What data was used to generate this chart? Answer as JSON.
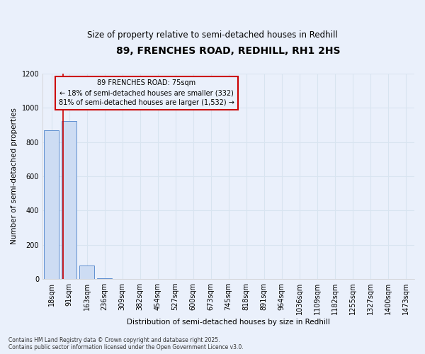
{
  "title": "89, FRENCHES ROAD, REDHILL, RH1 2HS",
  "subtitle": "Size of property relative to semi-detached houses in Redhill",
  "xlabel": "Distribution of semi-detached houses by size in Redhill",
  "ylabel": "Number of semi-detached properties",
  "property_label": "89 FRENCHES ROAD: 75sqm",
  "pct_smaller": 18,
  "count_smaller": 332,
  "pct_larger": 81,
  "count_larger": 1532,
  "bin_labels": [
    "18sqm",
    "91sqm",
    "163sqm",
    "236sqm",
    "309sqm",
    "382sqm",
    "454sqm",
    "527sqm",
    "600sqm",
    "673sqm",
    "745sqm",
    "818sqm",
    "891sqm",
    "964sqm",
    "1036sqm",
    "1109sqm",
    "1182sqm",
    "1255sqm",
    "1327sqm",
    "1400sqm",
    "1473sqm"
  ],
  "bar_values": [
    870,
    920,
    80,
    5,
    0,
    0,
    0,
    0,
    0,
    0,
    0,
    0,
    0,
    0,
    0,
    0,
    0,
    0,
    0,
    0,
    0
  ],
  "bar_color": "#cddcf3",
  "bar_edge_color": "#6090d0",
  "annotation_box_color": "#cc0000",
  "property_line_color": "#cc0000",
  "property_bar_index": 1,
  "ylim": [
    0,
    1200
  ],
  "yticks": [
    0,
    200,
    400,
    600,
    800,
    1000,
    1200
  ],
  "grid_color": "#d8e4f0",
  "background_color": "#eaf0fb",
  "footnote": "Contains HM Land Registry data © Crown copyright and database right 2025.\nContains public sector information licensed under the Open Government Licence v3.0."
}
